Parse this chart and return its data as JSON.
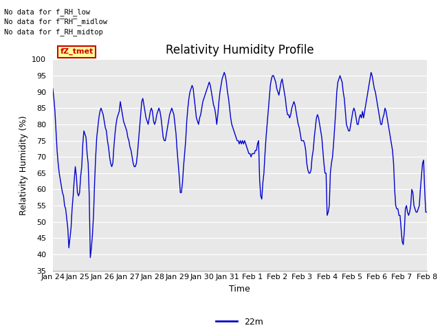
{
  "title": "Relativity Humidity Profile",
  "ylabel": "Relativity Humidity (%)",
  "xlabel": "Time",
  "legend_label": "22m",
  "line_color": "#0000CC",
  "plot_bg_color": "#E8E8E8",
  "ylim": [
    35,
    100
  ],
  "yticks": [
    35,
    40,
    45,
    50,
    55,
    60,
    65,
    70,
    75,
    80,
    85,
    90,
    95,
    100
  ],
  "xtick_labels": [
    "Jan 24",
    "Jan 25",
    "Jan 26",
    "Jan 27",
    "Jan 28",
    "Jan 29",
    "Jan 30",
    "Jan 31",
    "Feb 1",
    "Feb 2",
    "Feb 3",
    "Feb 4",
    "Feb 5",
    "Feb 6",
    "Feb 7",
    "Feb 8"
  ],
  "no_data_texts": [
    "No data for f_RH_low",
    "No data for f̅RH̅_midlow",
    "No data for f_RH_midtop"
  ],
  "legend_box_facecolor": "#FFFF99",
  "legend_box_edgecolor": "#CC0000",
  "legend_text_color": "#CC0000",
  "title_fontsize": 12,
  "axis_label_fontsize": 9,
  "tick_fontsize": 8,
  "humidity_values": [
    91,
    88,
    84,
    78,
    72,
    68,
    65,
    63,
    61,
    59,
    58,
    55,
    54,
    51,
    48,
    42,
    45,
    48,
    54,
    58,
    63,
    67,
    64,
    59,
    58,
    59,
    64,
    67,
    74,
    78,
    77,
    76,
    71,
    68,
    58,
    39,
    42,
    46,
    52,
    62,
    70,
    76,
    79,
    82,
    84,
    85,
    84,
    83,
    81,
    79,
    78,
    75,
    73,
    70,
    68,
    67,
    68,
    73,
    77,
    80,
    82,
    83,
    84,
    87,
    85,
    83,
    81,
    80,
    79,
    78,
    76,
    75,
    73,
    72,
    70,
    68,
    67,
    67,
    68,
    71,
    75,
    79,
    83,
    87,
    88,
    86,
    84,
    82,
    81,
    80,
    82,
    84,
    85,
    84,
    81,
    80,
    81,
    83,
    84,
    85,
    84,
    82,
    79,
    76,
    75,
    75,
    77,
    79,
    81,
    83,
    84,
    85,
    84,
    83,
    80,
    77,
    72,
    68,
    64,
    59,
    59,
    62,
    67,
    71,
    75,
    81,
    85,
    88,
    90,
    91,
    92,
    91,
    88,
    85,
    82,
    81,
    80,
    82,
    83,
    85,
    87,
    88,
    89,
    90,
    91,
    92,
    93,
    92,
    90,
    88,
    86,
    85,
    83,
    80,
    83,
    87,
    90,
    92,
    94,
    95,
    96,
    95,
    93,
    90,
    88,
    85,
    82,
    80,
    79,
    78,
    77,
    76,
    75,
    75,
    74,
    75,
    74,
    75,
    74,
    75,
    74,
    73,
    72,
    71,
    71,
    70,
    71,
    71,
    71,
    72,
    72,
    74,
    75,
    63,
    58,
    57,
    62,
    65,
    71,
    76,
    80,
    84,
    88,
    92,
    94,
    95,
    95,
    94,
    93,
    91,
    90,
    89,
    91,
    93,
    94,
    92,
    90,
    88,
    85,
    83,
    83,
    82,
    83,
    85,
    86,
    87,
    86,
    84,
    82,
    80,
    79,
    77,
    75,
    75,
    75,
    74,
    72,
    68,
    66,
    65,
    65,
    66,
    70,
    72,
    76,
    79,
    82,
    83,
    82,
    80,
    78,
    76,
    72,
    68,
    65,
    65,
    52,
    53,
    55,
    65,
    68,
    70,
    74,
    79,
    84,
    90,
    93,
    94,
    95,
    94,
    93,
    90,
    88,
    84,
    80,
    79,
    78,
    78,
    80,
    82,
    84,
    85,
    84,
    82,
    80,
    80,
    82,
    83,
    82,
    84,
    82,
    84,
    86,
    88,
    90,
    92,
    94,
    96,
    95,
    93,
    91,
    90,
    88,
    86,
    84,
    82,
    80,
    80,
    82,
    83,
    85,
    84,
    82,
    80,
    78,
    76,
    74,
    72,
    68,
    60,
    55,
    54,
    54,
    52,
    52,
    48,
    44,
    43,
    47,
    54,
    55,
    53,
    52,
    53,
    55,
    60,
    59,
    55,
    54,
    53,
    53,
    54,
    55,
    60,
    64,
    68,
    69,
    60,
    53,
    53
  ]
}
